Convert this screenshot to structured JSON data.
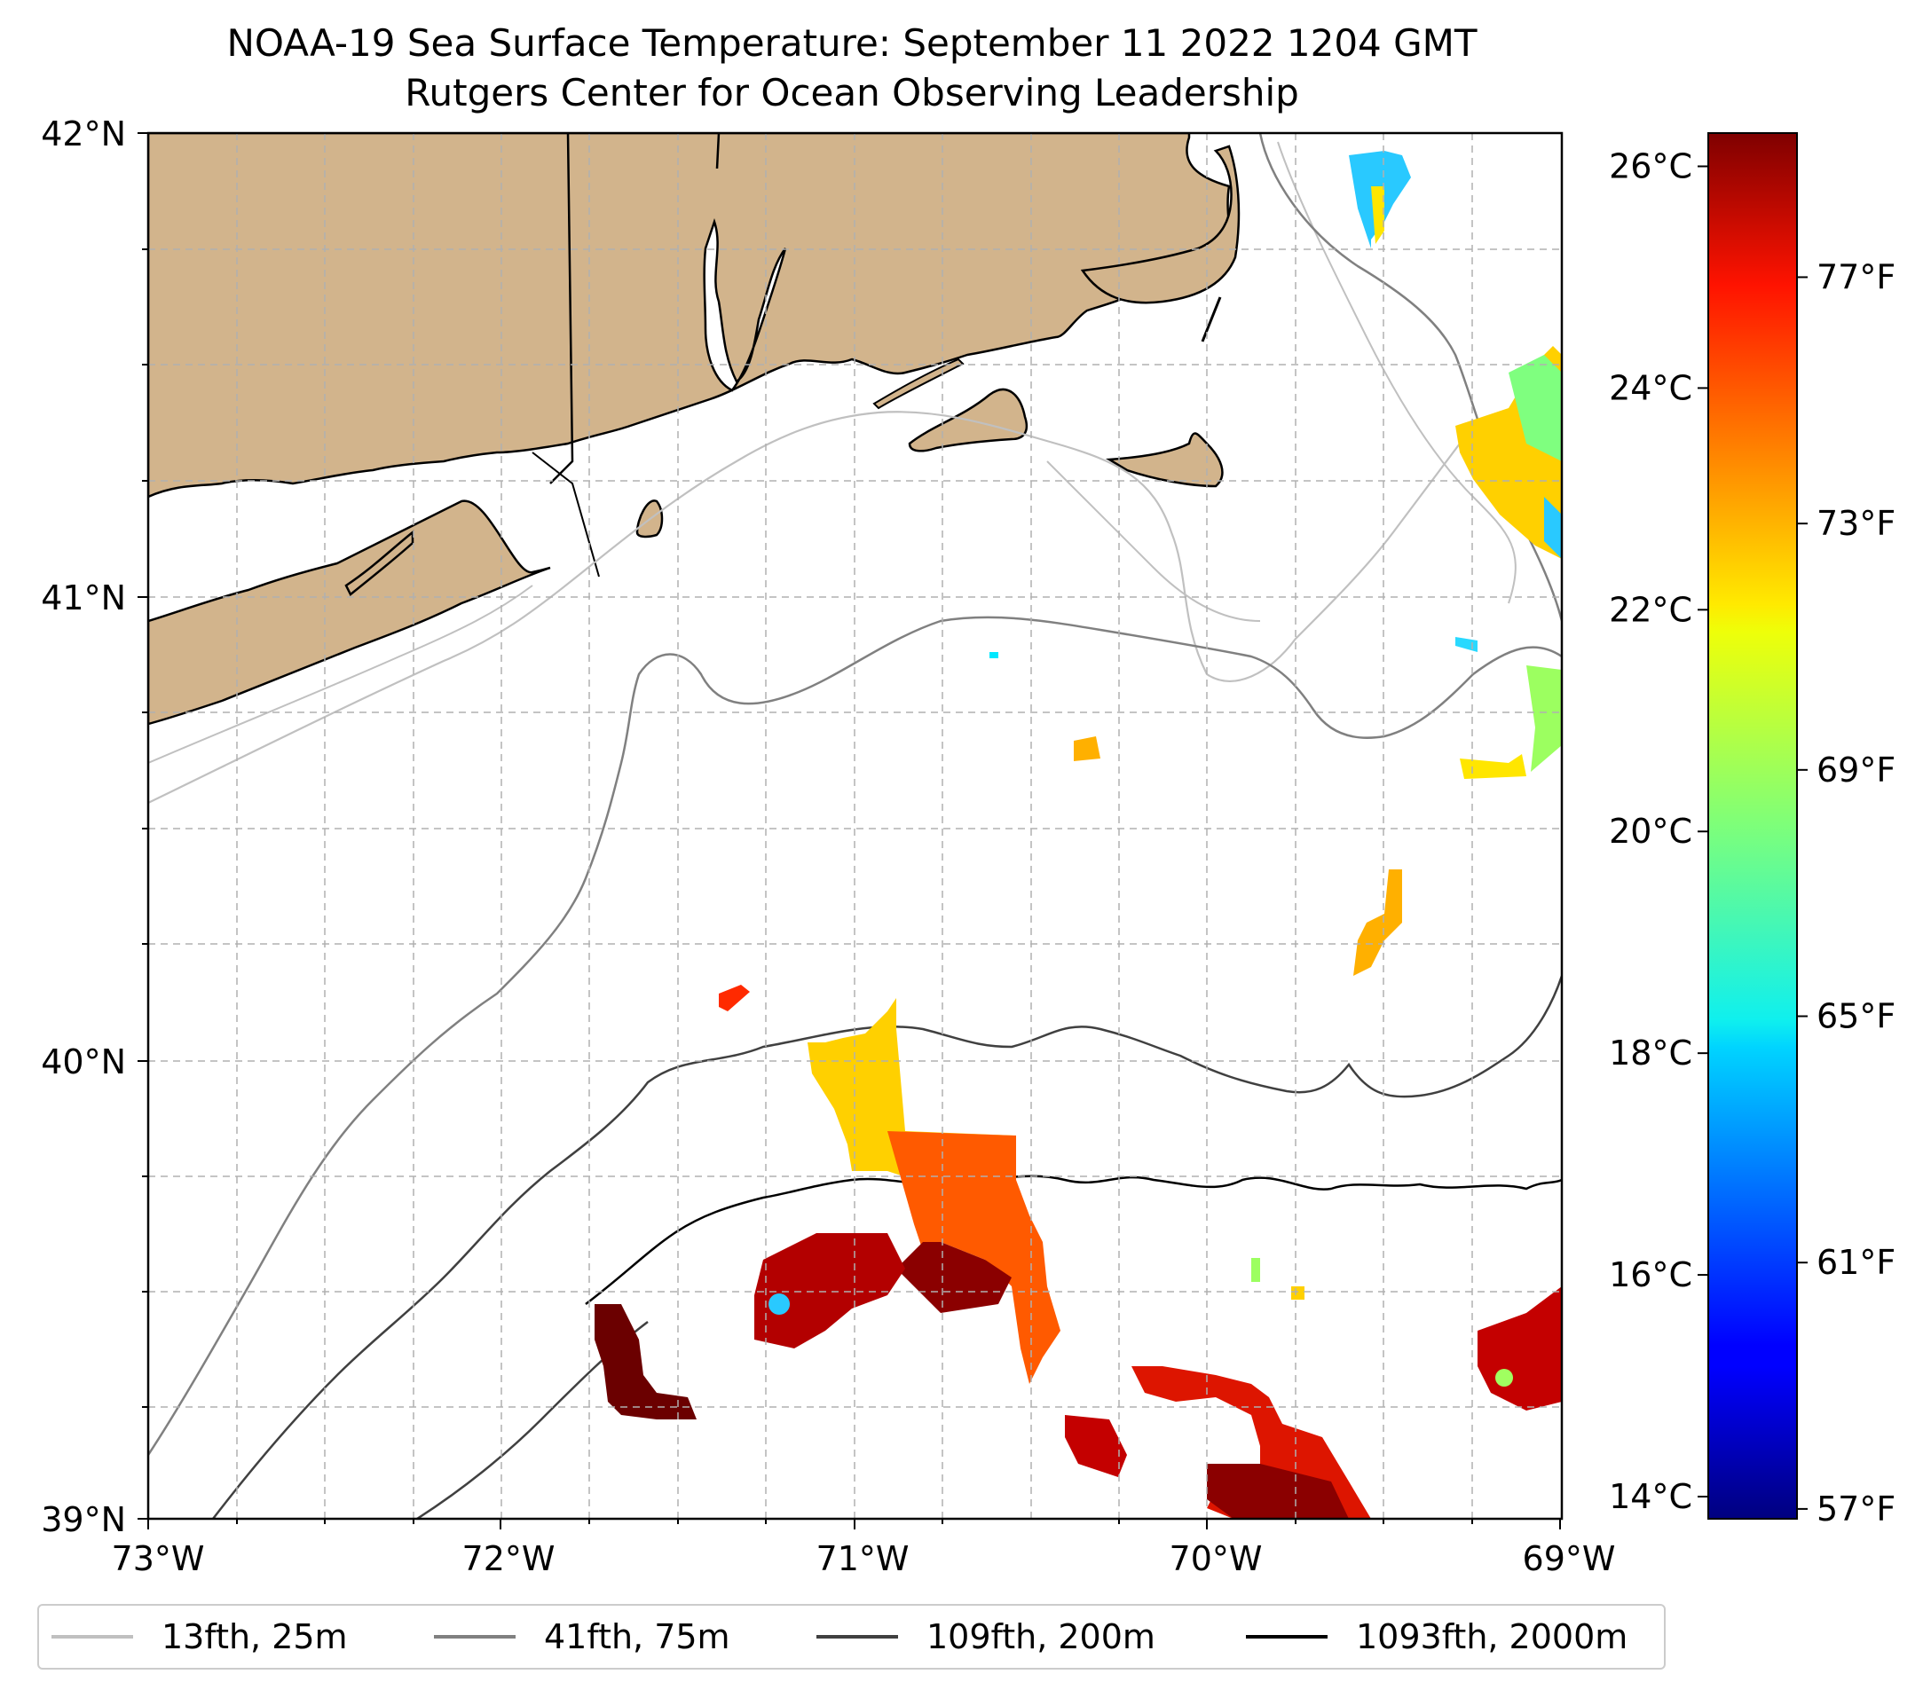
{
  "title": {
    "line1": "NOAA-19 Sea Surface Temperature: September 11 2022 1204 GMT",
    "line2": "Rutgers Center for Ocean Observing Leadership"
  },
  "map": {
    "extent": {
      "lon": [
        -73,
        -69
      ],
      "lat": [
        39,
        42
      ]
    },
    "land_color": "#d2b48c",
    "lat_labels": [
      "42°N",
      "41°N",
      "40°N",
      "39°N"
    ],
    "lon_labels": [
      "73°W",
      "72°W",
      "71°W",
      "70°W",
      "69°W"
    ],
    "gridlines": true
  },
  "colorbar": {
    "colormap": "jet",
    "range_c": [
      13.8,
      26.3
    ],
    "celsius_ticks": [
      {
        "value": 26,
        "label": "26°C"
      },
      {
        "value": 24,
        "label": "24°C"
      },
      {
        "value": 22,
        "label": "22°C"
      },
      {
        "value": 20,
        "label": "20°C"
      },
      {
        "value": 18,
        "label": "18°C"
      },
      {
        "value": 16,
        "label": "16°C"
      },
      {
        "value": 14,
        "label": "14°C"
      }
    ],
    "fahrenheit_ticks": [
      {
        "value": 77,
        "label": "77°F"
      },
      {
        "value": 73,
        "label": "73°F"
      },
      {
        "value": 69,
        "label": "69°F"
      },
      {
        "value": 65,
        "label": "65°F"
      },
      {
        "value": 61,
        "label": "61°F"
      },
      {
        "value": 57,
        "label": "57°F"
      }
    ]
  },
  "legend": [
    {
      "label": "13fth, 25m",
      "color": "#c0c0c0"
    },
    {
      "label": "41fth, 75m",
      "color": "#808080"
    },
    {
      "label": "109fth, 200m",
      "color": "#404040"
    },
    {
      "label": "1093fth, 2000m",
      "color": "#000000"
    }
  ]
}
